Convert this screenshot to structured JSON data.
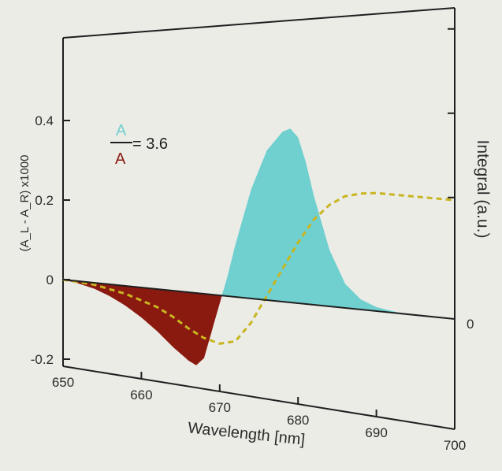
{
  "chart_data": {
    "type": "area",
    "xlabel": "Wavelength [nm]",
    "ylabel": "(A_L - A_R) x1000",
    "ylabel_right": "Integral (a.u.)",
    "xlim": [
      650,
      700
    ],
    "ylim": [
      -0.2,
      0.5
    ],
    "x_ticks": [
      "650",
      "660",
      "670",
      "680",
      "690",
      "700"
    ],
    "y_ticks": [
      "0.4",
      "0.2",
      "0",
      "-0.2"
    ],
    "y_ticks_right": [
      "0"
    ],
    "annotation": {
      "numerator": "A",
      "denominator": "A",
      "value": "= 3.6",
      "numerator_color": "#6fd0cf",
      "denominator_color": "#8a1a10"
    },
    "series": [
      {
        "x": [
          650,
          652,
          654,
          656,
          658,
          660,
          662,
          664,
          666,
          667,
          668,
          669,
          670,
          671,
          672,
          674,
          676,
          678,
          679,
          680,
          681,
          682,
          684,
          686,
          688,
          690,
          692,
          694,
          696,
          698,
          700
        ],
        "y": [
          0,
          -0.006,
          -0.015,
          -0.03,
          -0.05,
          -0.075,
          -0.105,
          -0.14,
          -0.17,
          -0.18,
          -0.16,
          -0.09,
          -0.02,
          0.05,
          0.13,
          0.27,
          0.37,
          0.42,
          0.43,
          0.41,
          0.35,
          0.27,
          0.14,
          0.06,
          0.025,
          0.01,
          0.004,
          0,
          0,
          0,
          0
        ],
        "colors": {
          "negative": "#8a1a10",
          "positive": "#6fd0cf"
        }
      },
      {
        "x": [
          650,
          654,
          658,
          662,
          664,
          666,
          668,
          670,
          672,
          674,
          676,
          678,
          680,
          682,
          684,
          686,
          688,
          690,
          694,
          700
        ],
        "y": [
          0,
          -0.005,
          -0.02,
          -0.045,
          -0.065,
          -0.09,
          -0.11,
          -0.12,
          -0.11,
          -0.06,
          0.01,
          0.08,
          0.15,
          0.21,
          0.25,
          0.275,
          0.285,
          0.29,
          0.29,
          0.29
        ],
        "color": "#c9b520",
        "style": "dashed"
      }
    ],
    "grid": false,
    "colors": {
      "axis": "#1f1f1f",
      "text": "#2b2b2b",
      "background": "#ecece7"
    }
  }
}
